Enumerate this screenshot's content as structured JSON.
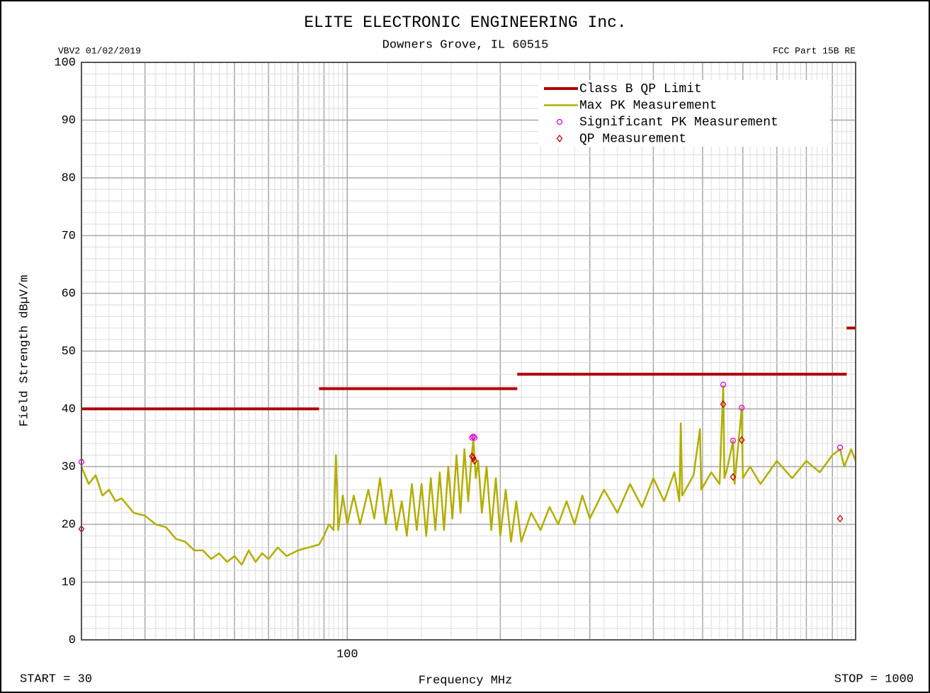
{
  "chart_data": {
    "type": "line",
    "title": "ELITE ELECTRONIC ENGINEERING Inc.",
    "subtitle": "Downers Grove, IL 60515",
    "annotations": [
      "VBV2  01/02/2019",
      "FCC Part 15B RE",
      "START = 30",
      "STOP = 1000"
    ],
    "x_label": "Frequency MHz",
    "y_label": "Field Strength dBµV/m",
    "log_x": true,
    "grid": true,
    "legend": "upper right",
    "xlim": [
      30,
      1000
    ],
    "ylim": [
      0,
      100
    ],
    "xticks": [
      100
    ],
    "yticks": [
      0,
      10,
      20,
      30,
      40,
      50,
      60,
      70,
      80,
      90,
      100
    ],
    "series": [
      {
        "name": "Class B QP Limit",
        "color": "#b00000",
        "mark": "line",
        "x": [
          30,
          88,
          88,
          88,
          216,
          216,
          216,
          960,
          960,
          960,
          1000
        ],
        "values": [
          40,
          40,
          null,
          43.5,
          43.5,
          null,
          46,
          46,
          null,
          54,
          54
        ]
      },
      {
        "name": "Max PK Measurement",
        "color": "#b3ae00",
        "mark": "line",
        "x": [
          30,
          31,
          32,
          33,
          34,
          35,
          36,
          38,
          40,
          42,
          44,
          46,
          48,
          50,
          52,
          54,
          56,
          58,
          60,
          62,
          64,
          66,
          68,
          70,
          73,
          76,
          80,
          84,
          88,
          90,
          92,
          94,
          95,
          96,
          98,
          100,
          103,
          106,
          110,
          113,
          116,
          119,
          122,
          125,
          128,
          131,
          134,
          137,
          140,
          143,
          146,
          149,
          152,
          155,
          158,
          161,
          164,
          167,
          170,
          173,
          175,
          177,
          179,
          181,
          184,
          188,
          192,
          196,
          200,
          205,
          210,
          215,
          220,
          230,
          240,
          250,
          260,
          270,
          280,
          290,
          300,
          320,
          340,
          360,
          380,
          400,
          420,
          440,
          450,
          453,
          456,
          480,
          494,
          497,
          520,
          540,
          549,
          552,
          560,
          574,
          578,
          597,
          600,
          620,
          650,
          700,
          750,
          800,
          850,
          900,
          932,
          950,
          980,
          1000
        ],
        "values": [
          30,
          27,
          28.5,
          25,
          26,
          24,
          24.5,
          22,
          21.5,
          20,
          19.5,
          17.5,
          17,
          15.5,
          15.5,
          14,
          15,
          13.5,
          14.5,
          13,
          15.5,
          13.5,
          15,
          14,
          16,
          14.5,
          15.5,
          16,
          16.5,
          18,
          20,
          19,
          32,
          19,
          25,
          20,
          25,
          20,
          26,
          21,
          28,
          20,
          26,
          19,
          24,
          18,
          27,
          19,
          27,
          18,
          28,
          19,
          29,
          19,
          30,
          21,
          32,
          22,
          33,
          24,
          30,
          35,
          28,
          31,
          22,
          30,
          19,
          28,
          18,
          26,
          17,
          24,
          17,
          22,
          19,
          23,
          20,
          24,
          20,
          25,
          21,
          26,
          22,
          27,
          23,
          28,
          24,
          29,
          24,
          37.5,
          25,
          28.5,
          36.5,
          26,
          29,
          27,
          44,
          28,
          30,
          34.5,
          27,
          40.2,
          28,
          30,
          27,
          31,
          28,
          31,
          29,
          32,
          33,
          30,
          33,
          31
        ]
      },
      {
        "name": "Significant PK Measurement",
        "color": "#e000e0",
        "mark": "circle",
        "x": [
          30,
          176,
          177,
          178,
          549,
          574,
          597,
          932
        ],
        "values": [
          30.8,
          35,
          35.2,
          35,
          44.2,
          34.5,
          40.2,
          33.3
        ]
      },
      {
        "name": "QP Measurement",
        "color": "#c00000",
        "mark": "diamond",
        "x": [
          30,
          176,
          177,
          178,
          549,
          574,
          597,
          932
        ],
        "values": [
          19.2,
          31.8,
          31.5,
          31,
          40.8,
          28.2,
          34.6,
          21
        ]
      }
    ]
  }
}
